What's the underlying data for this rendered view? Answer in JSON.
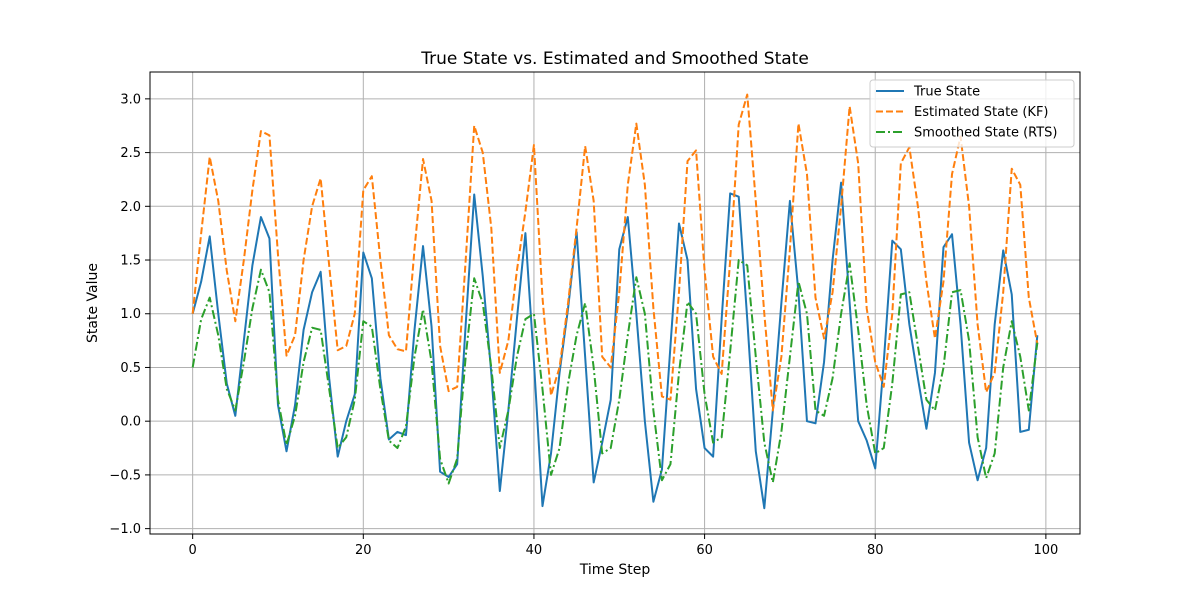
{
  "chart_data": {
    "type": "line",
    "title": "True State vs. Estimated and Smoothed State",
    "xlabel": "Time Step",
    "ylabel": "State Value",
    "xlim": [
      -5,
      104
    ],
    "ylim": [
      -1.05,
      3.25
    ],
    "xticks": [
      0,
      20,
      40,
      60,
      80,
      100
    ],
    "yticks": [
      -1.0,
      -0.5,
      0.0,
      0.5,
      1.0,
      1.5,
      2.0,
      2.5,
      3.0
    ],
    "grid": true,
    "legend_position": "top-right",
    "series": [
      {
        "name": "True State",
        "color": "#1f77b4",
        "style": "solid",
        "x": [
          0,
          1,
          2,
          3,
          4,
          5,
          6,
          7,
          8,
          9,
          10,
          11,
          12,
          13,
          14,
          15,
          16,
          17,
          18,
          19,
          20,
          21,
          22,
          23,
          24,
          25,
          26,
          27,
          28,
          29,
          30,
          31,
          32,
          33,
          34,
          35,
          36,
          37,
          38,
          39,
          40,
          41,
          42,
          43,
          44,
          45,
          46,
          47,
          48,
          49,
          50,
          51,
          52,
          53,
          54,
          55,
          56,
          57,
          58,
          59,
          60,
          61,
          62,
          63,
          64,
          65,
          66,
          67,
          68,
          69,
          70,
          71,
          72,
          73,
          74,
          75,
          76,
          77,
          78,
          79,
          80,
          81,
          82,
          83,
          84,
          85,
          86,
          87,
          88,
          89,
          90,
          91,
          92,
          93,
          94,
          95,
          96,
          97,
          98,
          99
        ],
        "values": [
          1.0,
          1.3,
          1.72,
          1.0,
          0.35,
          0.05,
          0.75,
          1.45,
          1.9,
          1.7,
          0.15,
          -0.28,
          0.15,
          0.85,
          1.2,
          1.39,
          0.4,
          -0.33,
          0.0,
          0.25,
          1.57,
          1.33,
          0.4,
          -0.17,
          -0.1,
          -0.13,
          0.85,
          1.63,
          0.88,
          -0.47,
          -0.52,
          -0.4,
          0.9,
          2.11,
          1.35,
          0.45,
          -0.65,
          0.1,
          0.95,
          1.75,
          0.55,
          -0.79,
          -0.3,
          0.45,
          1.05,
          1.76,
          0.6,
          -0.57,
          -0.2,
          0.2,
          1.6,
          1.9,
          1.0,
          0.0,
          -0.75,
          -0.45,
          0.7,
          1.84,
          1.5,
          0.3,
          -0.25,
          -0.33,
          0.95,
          2.12,
          2.09,
          0.95,
          -0.28,
          -0.81,
          0.1,
          1.1,
          2.05,
          1.2,
          0.0,
          -0.02,
          0.55,
          1.5,
          2.22,
          1.1,
          0.0,
          -0.18,
          -0.44,
          0.55,
          1.68,
          1.6,
          0.9,
          0.4,
          -0.07,
          0.45,
          1.62,
          1.74,
          0.9,
          -0.2,
          -0.55,
          -0.25,
          0.9,
          1.59,
          1.18,
          -0.1,
          -0.08,
          0.8
        ]
      },
      {
        "name": "Estimated State (KF)",
        "color": "#ff7f0e",
        "style": "dashed",
        "x": [
          0,
          1,
          2,
          3,
          4,
          5,
          6,
          7,
          8,
          9,
          10,
          11,
          12,
          13,
          14,
          15,
          16,
          17,
          18,
          19,
          20,
          21,
          22,
          23,
          24,
          25,
          26,
          27,
          28,
          29,
          30,
          31,
          32,
          33,
          34,
          35,
          36,
          37,
          38,
          39,
          40,
          41,
          42,
          43,
          44,
          45,
          46,
          47,
          48,
          49,
          50,
          51,
          52,
          53,
          54,
          55,
          56,
          57,
          58,
          59,
          60,
          61,
          62,
          63,
          64,
          65,
          66,
          67,
          68,
          69,
          70,
          71,
          72,
          73,
          74,
          75,
          76,
          77,
          78,
          79,
          80,
          81,
          82,
          83,
          84,
          85,
          86,
          87,
          88,
          89,
          90,
          91,
          92,
          93,
          94,
          95,
          96,
          97,
          98,
          99
        ],
        "values": [
          1.0,
          1.75,
          2.46,
          2.05,
          1.4,
          0.93,
          1.5,
          2.15,
          2.7,
          2.66,
          1.55,
          0.61,
          0.8,
          1.5,
          2.0,
          2.26,
          1.45,
          0.66,
          0.7,
          1.0,
          2.15,
          2.28,
          1.5,
          0.8,
          0.67,
          0.65,
          1.6,
          2.44,
          2.05,
          0.7,
          0.28,
          0.32,
          1.5,
          2.75,
          2.5,
          1.8,
          0.45,
          0.75,
          1.4,
          1.95,
          2.57,
          1.15,
          0.24,
          0.5,
          1.1,
          1.8,
          2.56,
          2.05,
          0.6,
          0.5,
          1.2,
          2.2,
          2.77,
          2.2,
          1.05,
          0.23,
          0.2,
          1.2,
          2.42,
          2.52,
          1.4,
          0.6,
          0.44,
          1.5,
          2.76,
          3.04,
          2.05,
          1.0,
          0.1,
          0.6,
          1.6,
          2.77,
          2.3,
          1.15,
          0.77,
          1.2,
          2.0,
          2.93,
          2.4,
          1.05,
          0.55,
          0.32,
          1.0,
          2.4,
          2.55,
          2.0,
          1.3,
          0.77,
          1.3,
          2.3,
          2.65,
          2.0,
          0.9,
          0.27,
          0.45,
          1.2,
          2.35,
          2.2,
          1.15,
          0.72
        ]
      },
      {
        "name": "Smoothed State (RTS)",
        "color": "#2ca02c",
        "style": "dashdot",
        "x": [
          0,
          1,
          2,
          3,
          4,
          5,
          6,
          7,
          8,
          9,
          10,
          11,
          12,
          13,
          14,
          15,
          16,
          17,
          18,
          19,
          20,
          21,
          22,
          23,
          24,
          25,
          26,
          27,
          28,
          29,
          30,
          31,
          32,
          33,
          34,
          35,
          36,
          37,
          38,
          39,
          40,
          41,
          42,
          43,
          44,
          45,
          46,
          47,
          48,
          49,
          50,
          51,
          52,
          53,
          54,
          55,
          56,
          57,
          58,
          59,
          60,
          61,
          62,
          63,
          64,
          65,
          66,
          67,
          68,
          69,
          70,
          71,
          72,
          73,
          74,
          75,
          76,
          77,
          78,
          79,
          80,
          81,
          82,
          83,
          84,
          85,
          86,
          87,
          88,
          89,
          90,
          91,
          92,
          93,
          94,
          95,
          96,
          97,
          98,
          99
        ],
        "values": [
          0.5,
          0.95,
          1.15,
          0.8,
          0.3,
          0.1,
          0.55,
          1.05,
          1.41,
          1.2,
          0.2,
          -0.22,
          0.05,
          0.55,
          0.87,
          0.85,
          0.3,
          -0.25,
          -0.15,
          0.2,
          0.93,
          0.88,
          0.3,
          -0.18,
          -0.25,
          -0.05,
          0.6,
          1.04,
          0.55,
          -0.35,
          -0.58,
          -0.35,
          0.6,
          1.33,
          1.1,
          0.5,
          -0.25,
          0.1,
          0.6,
          0.95,
          1.0,
          0.3,
          -0.5,
          -0.25,
          0.35,
          0.8,
          1.1,
          0.5,
          -0.3,
          -0.25,
          0.2,
          0.8,
          1.34,
          1.0,
          0.1,
          -0.55,
          -0.4,
          0.45,
          1.11,
          1.0,
          0.25,
          -0.2,
          -0.15,
          0.65,
          1.5,
          1.45,
          0.6,
          -0.2,
          -0.57,
          -0.1,
          0.6,
          1.3,
          1.0,
          0.1,
          0.05,
          0.4,
          1.0,
          1.47,
          0.85,
          0.15,
          -0.3,
          -0.25,
          0.35,
          1.18,
          1.2,
          0.7,
          0.2,
          0.1,
          0.5,
          1.2,
          1.22,
          0.75,
          -0.15,
          -0.53,
          -0.3,
          0.5,
          0.93,
          0.6,
          0.1,
          0.73
        ]
      }
    ]
  }
}
